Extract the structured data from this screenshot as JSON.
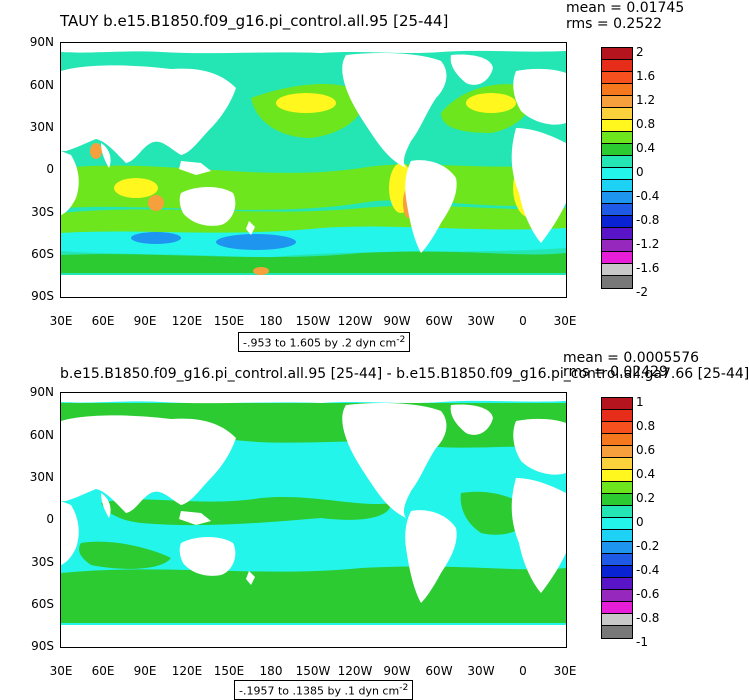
{
  "panels": [
    {
      "title": "TAUY b.e15.B1850.f09_g16.pi_control.all.95 [25-44]",
      "mean_label": "mean = 0.01745",
      "rms_label": "rms = 0.2522",
      "info_prefix": "-.953 to 1.605 by .2 dyn cm",
      "info_exp": "-2",
      "y_labels": [
        "90N",
        "60N",
        "30N",
        "0",
        "30S",
        "60S",
        "90S"
      ],
      "x_labels": [
        "30E",
        "60E",
        "90E",
        "120E",
        "150E",
        "180",
        "150W",
        "120W",
        "90W",
        "60W",
        "30W",
        "0",
        "30E"
      ],
      "colorbar_labels": [
        "2",
        "1.6",
        "1.2",
        "0.8",
        "0.4",
        "0",
        "-0.4",
        "-0.8",
        "-1.2",
        "-1.6",
        "-2"
      ]
    },
    {
      "title": "b.e15.B1850.f09_g16.pi_control.all.95 [25-44] - b.e15.B1850.f09_g16.pi_control.all.ga7.66 [25-44]",
      "mean_label": "mean = 0.0005576",
      "rms_label": "rms = 0.02429",
      "info_prefix": "-.1957 to .1385 by .1 dyn cm",
      "info_exp": "-2",
      "y_labels": [
        "90N",
        "60N",
        "30N",
        "0",
        "30S",
        "60S",
        "90S"
      ],
      "x_labels": [
        "30E",
        "60E",
        "90E",
        "120E",
        "150E",
        "180",
        "150W",
        "120W",
        "90W",
        "60W",
        "30W",
        "0",
        "30E"
      ],
      "colorbar_labels": [
        "1",
        "0.8",
        "0.6",
        "0.4",
        "0.2",
        "0",
        "-0.2",
        "-0.4",
        "-0.6",
        "-0.8",
        "-1"
      ]
    }
  ],
  "colorbar_colors": [
    "#b4141e",
    "#e62d19",
    "#f5501e",
    "#f5781e",
    "#f5a03c",
    "#fbd23c",
    "#fff71e",
    "#6ee61e",
    "#2ccb32",
    "#23e6b4",
    "#23f5eb",
    "#1ed2f5",
    "#1e96f0",
    "#1e5ae6",
    "#0a23d2",
    "#5a14c8",
    "#9628be",
    "#e61ed7",
    "#c8c8c8",
    "#787878"
  ],
  "map_colors": {
    "ocean_light": "#23f5eb",
    "ocean_mid": "#23e6b4",
    "ocean_green": "#2ccb32",
    "positive_green": "#6ee61e",
    "yellow": "#fff71e",
    "orange": "#f5a03c",
    "blue": "#1e96f0",
    "land": "#ffffff"
  }
}
